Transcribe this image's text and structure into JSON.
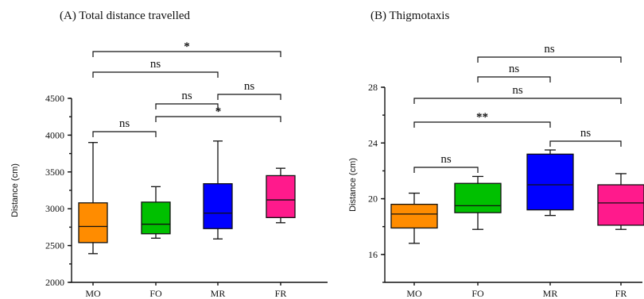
{
  "colors": {
    "MO": "#ff8c00",
    "FO": "#00c000",
    "MR": "#0000ff",
    "FR": "#ff1a8c"
  },
  "chart_data": [
    {
      "type": "boxplot",
      "title": "(A) Total distance travelled",
      "ylabel": "Distance (cm)",
      "ylim": [
        2000,
        4500
      ],
      "yticks": [
        2000,
        2500,
        3000,
        3500,
        4000,
        4500
      ],
      "categories": [
        "MO",
        "FO",
        "MR",
        "FR"
      ],
      "boxes": [
        {
          "name": "MO",
          "min": 2390,
          "q1": 2540,
          "median": 2760,
          "q3": 3080,
          "max": 3900
        },
        {
          "name": "FO",
          "min": 2600,
          "q1": 2660,
          "median": 2790,
          "q3": 3090,
          "max": 3300
        },
        {
          "name": "MR",
          "min": 2590,
          "q1": 2730,
          "median": 2940,
          "q3": 3340,
          "max": 3920
        },
        {
          "name": "FR",
          "min": 2810,
          "q1": 2880,
          "median": 3120,
          "q3": 3450,
          "max": 3550
        }
      ],
      "comparisons": [
        {
          "from": "MO",
          "to": "FR",
          "label": "*"
        },
        {
          "from": "MO",
          "to": "MR",
          "label": "ns"
        },
        {
          "from": "MR",
          "to": "FR",
          "label": "ns"
        },
        {
          "from": "FO",
          "to": "MR",
          "label": "ns"
        },
        {
          "from": "FO",
          "to": "FR",
          "label": "*"
        },
        {
          "from": "MO",
          "to": "FO",
          "label": "ns"
        }
      ]
    },
    {
      "type": "boxplot",
      "title": "(B) Thigmotaxis",
      "ylabel": "Distance (cm)",
      "ylim": [
        14,
        28
      ],
      "yticks": [
        16,
        20,
        24,
        28
      ],
      "categories": [
        "MO",
        "FO",
        "MR",
        "FR"
      ],
      "boxes": [
        {
          "name": "MO",
          "min": 16.8,
          "q1": 17.9,
          "median": 18.9,
          "q3": 19.6,
          "max": 20.4
        },
        {
          "name": "FO",
          "min": 17.8,
          "q1": 19.0,
          "median": 19.5,
          "q3": 21.1,
          "max": 21.6
        },
        {
          "name": "MR",
          "min": 18.8,
          "q1": 19.2,
          "median": 21.0,
          "q3": 23.2,
          "max": 23.5
        },
        {
          "name": "FR",
          "min": 17.8,
          "q1": 18.1,
          "median": 19.7,
          "q3": 21.0,
          "max": 21.8
        }
      ],
      "comparisons": [
        {
          "from": "FO",
          "to": "FR",
          "label": "ns"
        },
        {
          "from": "FO",
          "to": "MR",
          "label": "ns"
        },
        {
          "from": "MO",
          "to": "FR",
          "label": "ns"
        },
        {
          "from": "MO",
          "to": "MR",
          "label": "**"
        },
        {
          "from": "MR",
          "to": "FR",
          "label": "ns"
        },
        {
          "from": "MO",
          "to": "FO",
          "label": "ns"
        }
      ]
    }
  ]
}
